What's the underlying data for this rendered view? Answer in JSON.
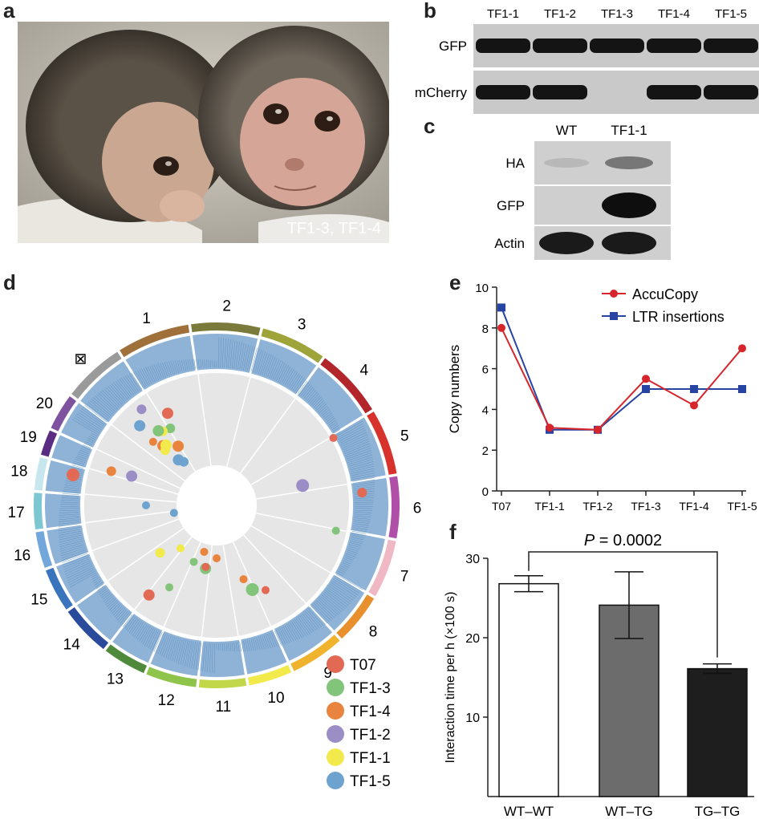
{
  "panels": {
    "a": {
      "label": "a",
      "caption": "TF1-3, TF1-4"
    },
    "b": {
      "label": "b",
      "lanes": [
        "TF1-1",
        "TF1-2",
        "TF1-3",
        "TF1-4",
        "TF1-5"
      ],
      "rows": [
        {
          "name": "GFP",
          "present": [
            true,
            true,
            true,
            true,
            true
          ]
        },
        {
          "name": "mCherry",
          "present": [
            true,
            true,
            false,
            true,
            true
          ]
        }
      ]
    },
    "c": {
      "label": "c",
      "lanes": [
        "WT",
        "TF1-1"
      ],
      "rows": [
        "HA",
        "GFP",
        "Actin"
      ]
    },
    "d": {
      "label": "d",
      "chromosomes": [
        "1",
        "2",
        "3",
        "4",
        "5",
        "6",
        "7",
        "8",
        "9",
        "10",
        "11",
        "12",
        "13",
        "14",
        "15",
        "16",
        "17",
        "18",
        "19",
        "20",
        "⊠"
      ],
      "chr_colors": [
        "#a0703a",
        "#7a7a3a",
        "#9ea33a",
        "#b2262b",
        "#d7322c",
        "#b04fa8",
        "#f0b8c4",
        "#e8902e",
        "#efb32e",
        "#f2e94a",
        "#c2d84a",
        "#8ec449",
        "#4f8a3c",
        "#2a4b9c",
        "#3a74bd",
        "#72a7dc",
        "#7cc7d1",
        "#c7e6ee",
        "#5a2d82",
        "#7f52a0",
        "#9a9a9a"
      ],
      "legend": [
        {
          "name": "T07",
          "color": "#e26a55"
        },
        {
          "name": "TF1-3",
          "color": "#82c47a"
        },
        {
          "name": "TF1-4",
          "color": "#e8843e"
        },
        {
          "name": "TF1-2",
          "color": "#9b8dc5"
        },
        {
          "name": "TF1-1",
          "color": "#f2ea4c"
        },
        {
          "name": "TF1-5",
          "color": "#6ea2cf"
        }
      ]
    },
    "e": {
      "label": "e",
      "chart_data": {
        "type": "line",
        "x": [
          "T07",
          "TF1-1",
          "TF1-2",
          "TF1-3",
          "TF1-4",
          "TF1-5"
        ],
        "series": [
          {
            "name": "AccuCopy",
            "color": "#d7262b",
            "values": [
              8,
              3.1,
              3,
              5.5,
              4.2,
              7
            ]
          },
          {
            "name": "LTR insertions",
            "color": "#2744a3",
            "values": [
              9,
              3,
              3,
              5,
              5,
              5
            ]
          }
        ],
        "ylabel": "Copy numbers",
        "ylim": [
          0,
          10
        ],
        "yticks": [
          "0",
          "2",
          "4",
          "6",
          "8",
          "10"
        ]
      }
    },
    "f": {
      "label": "f",
      "chart_data": {
        "type": "bar",
        "categories": [
          "WT–WT",
          "WT–TG",
          "TG–TG"
        ],
        "values": [
          26.8,
          24.1,
          16.1
        ],
        "errors": [
          1.0,
          4.2,
          0.6
        ],
        "bar_colors": [
          "#ffffff",
          "#6c6c6c",
          "#1e1e1e"
        ],
        "ylabel": "Interaction time per h (×100 s)",
        "ylim": [
          0,
          30
        ],
        "yticks": [
          "10",
          "20",
          "30"
        ],
        "annotation": {
          "italic": "P",
          "text": " = 0.0002"
        }
      }
    }
  }
}
